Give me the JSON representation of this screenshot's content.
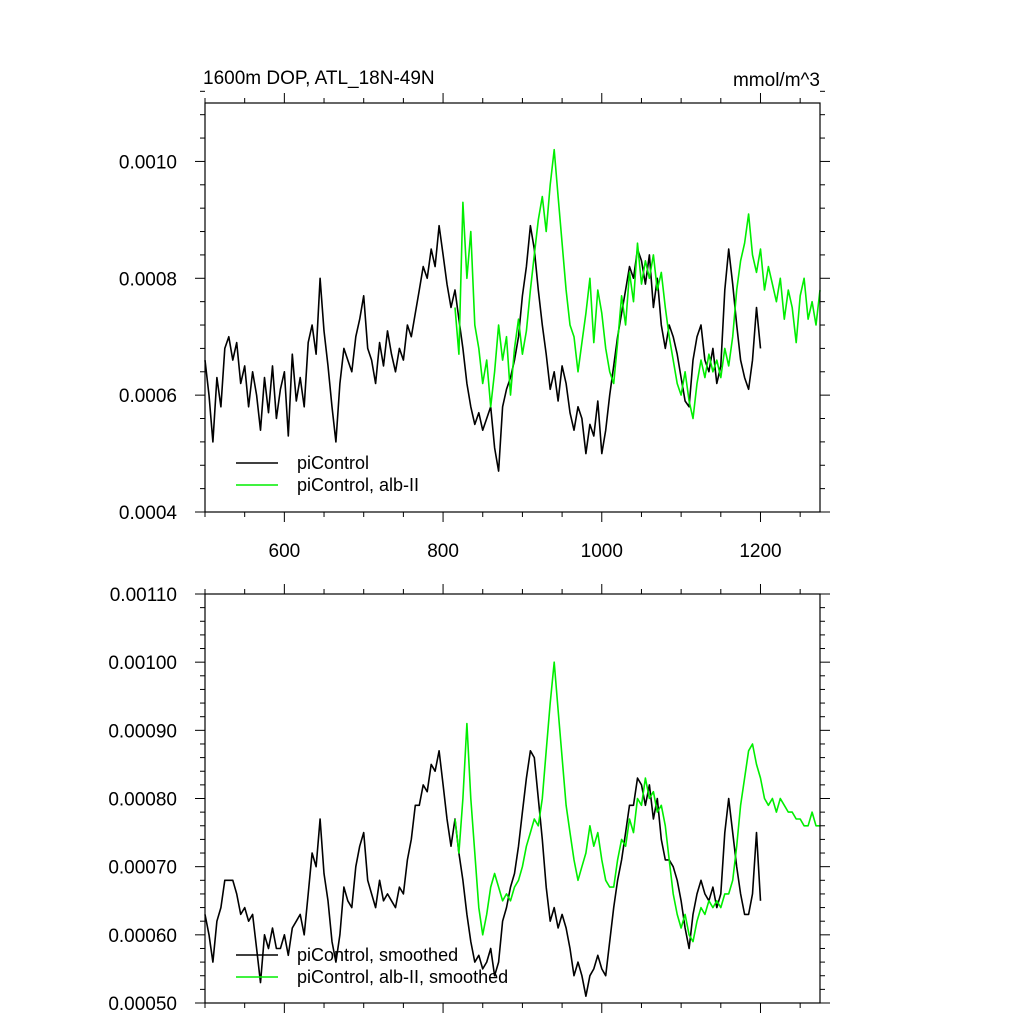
{
  "title_left": "1600m DOP, ATL_18N-49N",
  "title_right": "mmol/m^3",
  "colors": {
    "piControl": "#000000",
    "albII": "#00ee00"
  },
  "chart_data": [
    {
      "type": "line",
      "name": "raw",
      "xlim": [
        500,
        1275
      ],
      "ylim": [
        0.0004,
        0.0011
      ],
      "xticks": [
        600,
        800,
        1000,
        1200
      ],
      "xtick_labels": [
        "600",
        "800",
        "1000",
        "1200"
      ],
      "yticks": [
        0.0004,
        0.0006,
        0.0008,
        0.001
      ],
      "ytick_labels": [
        "0.0004",
        "0.0006",
        "0.0008",
        "0.0010"
      ],
      "legend": [
        "piControl",
        "piControl, alb-II"
      ],
      "series": [
        {
          "name": "piControl",
          "x": [
            500,
            505,
            510,
            515,
            520,
            525,
            530,
            535,
            540,
            545,
            550,
            555,
            560,
            565,
            570,
            575,
            580,
            585,
            590,
            595,
            600,
            605,
            610,
            615,
            620,
            625,
            630,
            635,
            640,
            645,
            650,
            655,
            660,
            665,
            670,
            675,
            680,
            685,
            690,
            695,
            700,
            705,
            710,
            715,
            720,
            725,
            730,
            735,
            740,
            745,
            750,
            755,
            760,
            765,
            770,
            775,
            780,
            785,
            790,
            795,
            800,
            805,
            810,
            815,
            820,
            825,
            830,
            835,
            840,
            845,
            850,
            855,
            860,
            865,
            870,
            875,
            880,
            885,
            890,
            895,
            900,
            905,
            910,
            915,
            920,
            925,
            930,
            935,
            940,
            945,
            950,
            955,
            960,
            965,
            970,
            975,
            980,
            985,
            990,
            995,
            1000,
            1005,
            1010,
            1015,
            1020,
            1025,
            1030,
            1035,
            1040,
            1045,
            1050,
            1055,
            1060,
            1065,
            1070,
            1075,
            1080,
            1085,
            1090,
            1095,
            1100,
            1105,
            1110,
            1115,
            1120,
            1125,
            1130,
            1135,
            1140,
            1145,
            1150,
            1155,
            1160,
            1165,
            1170,
            1175,
            1180,
            1185,
            1190,
            1195,
            1200
          ],
          "y": [
            0.00066,
            0.0006,
            0.00052,
            0.00063,
            0.00058,
            0.00068,
            0.0007,
            0.00066,
            0.00069,
            0.00062,
            0.00065,
            0.00058,
            0.00064,
            0.0006,
            0.00054,
            0.00063,
            0.00057,
            0.00065,
            0.00056,
            0.00061,
            0.00064,
            0.00053,
            0.00067,
            0.00059,
            0.00063,
            0.00058,
            0.00069,
            0.00072,
            0.00067,
            0.0008,
            0.00071,
            0.00065,
            0.00058,
            0.00052,
            0.00062,
            0.00068,
            0.00066,
            0.00064,
            0.0007,
            0.00073,
            0.00077,
            0.00068,
            0.00066,
            0.00062,
            0.00069,
            0.00065,
            0.00071,
            0.00067,
            0.00064,
            0.00068,
            0.00066,
            0.00072,
            0.0007,
            0.00074,
            0.00078,
            0.00082,
            0.0008,
            0.00085,
            0.00082,
            0.00089,
            0.00084,
            0.00079,
            0.00075,
            0.00078,
            0.00073,
            0.00068,
            0.00062,
            0.00058,
            0.00055,
            0.00057,
            0.00054,
            0.00056,
            0.00058,
            0.00051,
            0.00047,
            0.00058,
            0.00061,
            0.00063,
            0.00066,
            0.0007,
            0.00077,
            0.00082,
            0.00089,
            0.00085,
            0.00078,
            0.00072,
            0.00067,
            0.00061,
            0.00064,
            0.00059,
            0.00065,
            0.00062,
            0.00057,
            0.00054,
            0.00058,
            0.00056,
            0.0005,
            0.00055,
            0.00053,
            0.00059,
            0.0005,
            0.00054,
            0.0006,
            0.00065,
            0.0007,
            0.00074,
            0.00078,
            0.00082,
            0.0008,
            0.00085,
            0.00083,
            0.00079,
            0.00084,
            0.00075,
            0.0008,
            0.00072,
            0.00068,
            0.00072,
            0.0007,
            0.00067,
            0.00063,
            0.00059,
            0.00058,
            0.00066,
            0.0007,
            0.00072,
            0.00066,
            0.00064,
            0.00068,
            0.00062,
            0.00065,
            0.00078,
            0.00085,
            0.00079,
            0.00072,
            0.00066,
            0.00063,
            0.00061,
            0.00066,
            0.00075,
            0.00068
          ]
        },
        {
          "name": "piControl, alb-II",
          "x": [
            815,
            820,
            825,
            830,
            835,
            840,
            845,
            850,
            855,
            860,
            865,
            870,
            875,
            880,
            885,
            890,
            895,
            900,
            905,
            910,
            915,
            920,
            925,
            930,
            935,
            940,
            945,
            950,
            955,
            960,
            965,
            970,
            975,
            980,
            985,
            990,
            995,
            1000,
            1005,
            1010,
            1015,
            1020,
            1025,
            1030,
            1035,
            1040,
            1045,
            1050,
            1055,
            1060,
            1065,
            1070,
            1075,
            1080,
            1085,
            1090,
            1095,
            1100,
            1105,
            1110,
            1115,
            1120,
            1125,
            1130,
            1135,
            1140,
            1145,
            1150,
            1155,
            1160,
            1165,
            1170,
            1175,
            1180,
            1185,
            1190,
            1195,
            1200,
            1205,
            1210,
            1215,
            1220,
            1225,
            1230,
            1235,
            1240,
            1245,
            1250,
            1255,
            1260,
            1265,
            1270,
            1275
          ],
          "y": [
            0.00075,
            0.00067,
            0.00093,
            0.0008,
            0.00088,
            0.00072,
            0.00068,
            0.00062,
            0.00066,
            0.00058,
            0.00064,
            0.00072,
            0.00066,
            0.0007,
            0.0006,
            0.00068,
            0.00073,
            0.00067,
            0.00071,
            0.00078,
            0.00084,
            0.0009,
            0.00094,
            0.00088,
            0.00096,
            0.00102,
            0.00094,
            0.00086,
            0.00078,
            0.00072,
            0.0007,
            0.00064,
            0.00069,
            0.00074,
            0.0008,
            0.00069,
            0.00078,
            0.00074,
            0.00068,
            0.00064,
            0.00062,
            0.00069,
            0.00077,
            0.00072,
            0.00081,
            0.00076,
            0.00086,
            0.00079,
            0.00083,
            0.0008,
            0.00084,
            0.00078,
            0.00081,
            0.00075,
            0.0007,
            0.00066,
            0.00062,
            0.0006,
            0.00064,
            0.00059,
            0.00056,
            0.00062,
            0.00066,
            0.00063,
            0.00067,
            0.00064,
            0.00066,
            0.00063,
            0.00068,
            0.00065,
            0.0007,
            0.00078,
            0.00083,
            0.00086,
            0.00091,
            0.00084,
            0.00081,
            0.00085,
            0.00078,
            0.00082,
            0.00079,
            0.00076,
            0.0008,
            0.00073,
            0.00078,
            0.00075,
            0.00069,
            0.00077,
            0.0008,
            0.00073,
            0.00076,
            0.00072,
            0.00078
          ]
        }
      ]
    },
    {
      "type": "line",
      "name": "smoothed",
      "xlim": [
        500,
        1275
      ],
      "ylim": [
        0.0005,
        0.0011
      ],
      "xticks": [
        600,
        800,
        1000,
        1200
      ],
      "yticks": [
        0.0005,
        0.0006,
        0.0007,
        0.0008,
        0.0009,
        0.001,
        0.0011
      ],
      "ytick_labels": [
        "0.00050",
        "0.00060",
        "0.00070",
        "0.00080",
        "0.00090",
        "0.00100",
        "0.00110"
      ],
      "legend": [
        "piControl, smoothed",
        "piControl, alb-II, smoothed"
      ],
      "series": [
        {
          "name": "piControl, smoothed",
          "x": [
            500,
            505,
            510,
            515,
            520,
            525,
            530,
            535,
            540,
            545,
            550,
            555,
            560,
            565,
            570,
            575,
            580,
            585,
            590,
            595,
            600,
            605,
            610,
            615,
            620,
            625,
            630,
            635,
            640,
            645,
            650,
            655,
            660,
            665,
            670,
            675,
            680,
            685,
            690,
            695,
            700,
            705,
            710,
            715,
            720,
            725,
            730,
            735,
            740,
            745,
            750,
            755,
            760,
            765,
            770,
            775,
            780,
            785,
            790,
            795,
            800,
            805,
            810,
            815,
            820,
            825,
            830,
            835,
            840,
            845,
            850,
            855,
            860,
            865,
            870,
            875,
            880,
            885,
            890,
            895,
            900,
            905,
            910,
            915,
            920,
            925,
            930,
            935,
            940,
            945,
            950,
            955,
            960,
            965,
            970,
            975,
            980,
            985,
            990,
            995,
            1000,
            1005,
            1010,
            1015,
            1020,
            1025,
            1030,
            1035,
            1040,
            1045,
            1050,
            1055,
            1060,
            1065,
            1070,
            1075,
            1080,
            1085,
            1090,
            1095,
            1100,
            1105,
            1110,
            1115,
            1120,
            1125,
            1130,
            1135,
            1140,
            1145,
            1150,
            1155,
            1160,
            1165,
            1170,
            1175,
            1180,
            1185,
            1190,
            1195,
            1200
          ],
          "y": [
            0.00063,
            0.0006,
            0.00056,
            0.00062,
            0.00064,
            0.00068,
            0.00068,
            0.00068,
            0.00066,
            0.00063,
            0.00064,
            0.00062,
            0.00063,
            0.00058,
            0.00053,
            0.0006,
            0.00058,
            0.00061,
            0.00058,
            0.00058,
            0.0006,
            0.00057,
            0.00061,
            0.00062,
            0.00063,
            0.0006,
            0.00066,
            0.00072,
            0.0007,
            0.00077,
            0.00069,
            0.00065,
            0.00059,
            0.00056,
            0.0006,
            0.00067,
            0.00065,
            0.00064,
            0.0007,
            0.00073,
            0.00075,
            0.00068,
            0.00066,
            0.00064,
            0.00068,
            0.00065,
            0.00066,
            0.00065,
            0.00064,
            0.00067,
            0.00066,
            0.00071,
            0.00074,
            0.00079,
            0.00079,
            0.00082,
            0.00081,
            0.00085,
            0.00084,
            0.00087,
            0.00082,
            0.00077,
            0.00073,
            0.00077,
            0.00072,
            0.00068,
            0.00063,
            0.00059,
            0.00056,
            0.00057,
            0.00055,
            0.00056,
            0.00058,
            0.00054,
            0.00056,
            0.00062,
            0.00064,
            0.00067,
            0.00069,
            0.00073,
            0.00078,
            0.00083,
            0.00087,
            0.00086,
            0.0008,
            0.00074,
            0.00067,
            0.00062,
            0.00064,
            0.00061,
            0.00063,
            0.00061,
            0.00058,
            0.00054,
            0.00056,
            0.00054,
            0.00051,
            0.00054,
            0.00055,
            0.00057,
            0.00055,
            0.00054,
            0.00059,
            0.00064,
            0.00068,
            0.00071,
            0.00075,
            0.00079,
            0.00079,
            0.00083,
            0.00082,
            0.00079,
            0.00082,
            0.00077,
            0.0008,
            0.00074,
            0.00071,
            0.00071,
            0.0007,
            0.00068,
            0.00065,
            0.00061,
            0.00058,
            0.00063,
            0.00066,
            0.00068,
            0.00066,
            0.00065,
            0.00067,
            0.00064,
            0.00066,
            0.00075,
            0.0008,
            0.00075,
            0.0007,
            0.00066,
            0.00063,
            0.00063,
            0.00066,
            0.00075,
            0.00065
          ]
        },
        {
          "name": "piControl, alb-II, smoothed",
          "x": [
            815,
            820,
            825,
            830,
            835,
            840,
            845,
            850,
            855,
            860,
            865,
            870,
            875,
            880,
            885,
            890,
            895,
            900,
            905,
            910,
            915,
            920,
            925,
            930,
            935,
            940,
            945,
            950,
            955,
            960,
            965,
            970,
            975,
            980,
            985,
            990,
            995,
            1000,
            1005,
            1010,
            1015,
            1020,
            1025,
            1030,
            1035,
            1040,
            1045,
            1050,
            1055,
            1060,
            1065,
            1070,
            1075,
            1080,
            1085,
            1090,
            1095,
            1100,
            1105,
            1110,
            1115,
            1120,
            1125,
            1130,
            1135,
            1140,
            1145,
            1150,
            1155,
            1160,
            1165,
            1170,
            1175,
            1180,
            1185,
            1190,
            1195,
            1200,
            1205,
            1210,
            1215,
            1220,
            1225,
            1230,
            1235,
            1240,
            1245,
            1250,
            1255,
            1260,
            1265,
            1270,
            1275
          ],
          "y": [
            0.00077,
            0.00072,
            0.0008,
            0.00091,
            0.0008,
            0.00072,
            0.00064,
            0.0006,
            0.00063,
            0.00067,
            0.00069,
            0.00067,
            0.00065,
            0.00066,
            0.00065,
            0.00067,
            0.00068,
            0.0007,
            0.00073,
            0.00075,
            0.00077,
            0.00076,
            0.0008,
            0.00087,
            0.00094,
            0.001,
            0.00093,
            0.00086,
            0.00079,
            0.00075,
            0.00071,
            0.00068,
            0.0007,
            0.00072,
            0.00076,
            0.00073,
            0.00075,
            0.00071,
            0.00068,
            0.00067,
            0.00067,
            0.00071,
            0.00074,
            0.00073,
            0.00077,
            0.00075,
            0.0008,
            0.00079,
            0.00083,
            0.0008,
            0.00081,
            0.00078,
            0.00079,
            0.00076,
            0.00071,
            0.00066,
            0.00063,
            0.00061,
            0.00063,
            0.0006,
            0.00059,
            0.00062,
            0.00064,
            0.00063,
            0.00065,
            0.00064,
            0.00065,
            0.00064,
            0.00066,
            0.00066,
            0.00068,
            0.00073,
            0.00079,
            0.00083,
            0.00087,
            0.00088,
            0.00085,
            0.00083,
            0.0008,
            0.00079,
            0.0008,
            0.00078,
            0.0008,
            0.00079,
            0.00078,
            0.00078,
            0.00077,
            0.00077,
            0.00076,
            0.00076,
            0.00078,
            0.00076,
            0.00076
          ]
        }
      ]
    }
  ]
}
